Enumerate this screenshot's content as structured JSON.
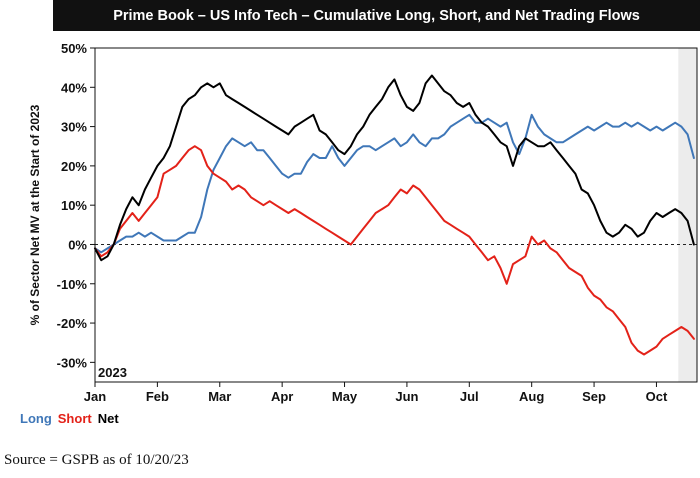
{
  "chart_data": {
    "type": "line",
    "title": "Prime Book – US Info Tech – Cumulative Long, Short, and Net Trading Flows",
    "ylabel": "% of Sector Net MV at the Start of 2023",
    "xlabel": "",
    "year_label": "2023",
    "ylim": [
      -35,
      50
    ],
    "yticks": [
      50,
      40,
      30,
      20,
      10,
      0,
      -10,
      -20,
      -30
    ],
    "ytick_labels": [
      "50%",
      "40%",
      "30%",
      "20%",
      "10%",
      "0%",
      "-10%",
      "-20%",
      "-30%"
    ],
    "xlim": [
      0,
      9.65
    ],
    "xticks": [
      0,
      1,
      2,
      3,
      4,
      5,
      6,
      7,
      8,
      9
    ],
    "xtick_labels": [
      "Jan",
      "Feb",
      "Mar",
      "Apr",
      "May",
      "Jun",
      "Jul",
      "Aug",
      "Sep",
      "Oct"
    ],
    "zero_line": "dashed",
    "shaded_region": [
      9.35,
      9.65
    ],
    "legend_position": "bottom-left",
    "series": [
      {
        "name": "Long",
        "color": "#3f77b8",
        "x": [
          0,
          0.1,
          0.2,
          0.3,
          0.4,
          0.5,
          0.6,
          0.7,
          0.8,
          0.9,
          1.0,
          1.1,
          1.2,
          1.3,
          1.4,
          1.5,
          1.6,
          1.7,
          1.8,
          1.9,
          2.0,
          2.1,
          2.2,
          2.3,
          2.4,
          2.5,
          2.6,
          2.7,
          2.8,
          2.9,
          3.0,
          3.1,
          3.2,
          3.3,
          3.4,
          3.5,
          3.6,
          3.7,
          3.8,
          3.9,
          4.0,
          4.1,
          4.2,
          4.3,
          4.4,
          4.5,
          4.6,
          4.7,
          4.8,
          4.9,
          5.0,
          5.1,
          5.2,
          5.3,
          5.4,
          5.5,
          5.6,
          5.7,
          5.8,
          5.9,
          6.0,
          6.1,
          6.2,
          6.3,
          6.4,
          6.5,
          6.6,
          6.7,
          6.8,
          6.9,
          7.0,
          7.1,
          7.2,
          7.3,
          7.4,
          7.5,
          7.6,
          7.7,
          7.8,
          7.9,
          8.0,
          8.1,
          8.2,
          8.3,
          8.4,
          8.5,
          8.6,
          8.7,
          8.8,
          8.9,
          9.0,
          9.1,
          9.2,
          9.3,
          9.4,
          9.5,
          9.6
        ],
        "values": [
          -1,
          -2,
          -1,
          0,
          1,
          2,
          2,
          3,
          2,
          3,
          2,
          1,
          1,
          1,
          2,
          3,
          3,
          7,
          14,
          19,
          22,
          25,
          27,
          26,
          25,
          26,
          24,
          24,
          22,
          20,
          18,
          17,
          18,
          18,
          21,
          23,
          22,
          22,
          25,
          22,
          20,
          22,
          24,
          25,
          25,
          24,
          25,
          26,
          27,
          25,
          26,
          28,
          26,
          25,
          27,
          27,
          28,
          30,
          31,
          32,
          33,
          31,
          31,
          32,
          31,
          30,
          31,
          26,
          23,
          27,
          33,
          30,
          28,
          27,
          26,
          26,
          27,
          28,
          29,
          30,
          29,
          30,
          31,
          30,
          30,
          31,
          30,
          31,
          30,
          29,
          30,
          29,
          30,
          31,
          30,
          28,
          22
        ]
      },
      {
        "name": "Short",
        "color": "#e32219",
        "x": [
          0,
          0.1,
          0.2,
          0.3,
          0.4,
          0.5,
          0.6,
          0.7,
          0.8,
          0.9,
          1.0,
          1.1,
          1.2,
          1.3,
          1.4,
          1.5,
          1.6,
          1.7,
          1.8,
          1.9,
          2.0,
          2.1,
          2.2,
          2.3,
          2.4,
          2.5,
          2.6,
          2.7,
          2.8,
          2.9,
          3.0,
          3.1,
          3.2,
          3.3,
          3.4,
          3.5,
          3.6,
          3.7,
          3.8,
          3.9,
          4.0,
          4.1,
          4.2,
          4.3,
          4.4,
          4.5,
          4.6,
          4.7,
          4.8,
          4.9,
          5.0,
          5.1,
          5.2,
          5.3,
          5.4,
          5.5,
          5.6,
          5.7,
          5.8,
          5.9,
          6.0,
          6.1,
          6.2,
          6.3,
          6.4,
          6.5,
          6.6,
          6.7,
          6.8,
          6.9,
          7.0,
          7.1,
          7.2,
          7.3,
          7.4,
          7.5,
          7.6,
          7.7,
          7.8,
          7.9,
          8.0,
          8.1,
          8.2,
          8.3,
          8.4,
          8.5,
          8.6,
          8.7,
          8.8,
          8.9,
          9.0,
          9.1,
          9.2,
          9.3,
          9.4,
          9.5,
          9.6
        ],
        "values": [
          -1,
          -3,
          -2,
          0,
          4,
          6,
          8,
          6,
          8,
          10,
          12,
          18,
          19,
          20,
          22,
          24,
          25,
          24,
          20,
          18,
          17,
          16,
          14,
          15,
          14,
          12,
          11,
          10,
          11,
          10,
          9,
          8,
          9,
          8,
          7,
          6,
          5,
          4,
          3,
          2,
          1,
          0,
          2,
          4,
          6,
          8,
          9,
          10,
          12,
          14,
          13,
          15,
          14,
          12,
          10,
          8,
          6,
          5,
          4,
          3,
          2,
          0,
          -2,
          -4,
          -3,
          -6,
          -10,
          -5,
          -4,
          -3,
          2,
          0,
          1,
          -1,
          -2,
          -4,
          -6,
          -7,
          -8,
          -11,
          -13,
          -14,
          -16,
          -17,
          -19,
          -21,
          -25,
          -27,
          -28,
          -27,
          -26,
          -24,
          -23,
          -22,
          -21,
          -22,
          -24
        ]
      },
      {
        "name": "Net",
        "color": "#000000",
        "x": [
          0,
          0.1,
          0.2,
          0.3,
          0.4,
          0.5,
          0.6,
          0.7,
          0.8,
          0.9,
          1.0,
          1.1,
          1.2,
          1.3,
          1.4,
          1.5,
          1.6,
          1.7,
          1.8,
          1.9,
          2.0,
          2.1,
          2.2,
          2.3,
          2.4,
          2.5,
          2.6,
          2.7,
          2.8,
          2.9,
          3.0,
          3.1,
          3.2,
          3.3,
          3.4,
          3.5,
          3.6,
          3.7,
          3.8,
          3.9,
          4.0,
          4.1,
          4.2,
          4.3,
          4.4,
          4.5,
          4.6,
          4.7,
          4.8,
          4.9,
          5.0,
          5.1,
          5.2,
          5.3,
          5.4,
          5.5,
          5.6,
          5.7,
          5.8,
          5.9,
          6.0,
          6.1,
          6.2,
          6.3,
          6.4,
          6.5,
          6.6,
          6.7,
          6.8,
          6.9,
          7.0,
          7.1,
          7.2,
          7.3,
          7.4,
          7.5,
          7.6,
          7.7,
          7.8,
          7.9,
          8.0,
          8.1,
          8.2,
          8.3,
          8.4,
          8.5,
          8.6,
          8.7,
          8.8,
          8.9,
          9.0,
          9.1,
          9.2,
          9.3,
          9.4,
          9.5,
          9.6
        ],
        "values": [
          -1,
          -4,
          -3,
          0,
          5,
          9,
          12,
          10,
          14,
          17,
          20,
          22,
          25,
          30,
          35,
          37,
          38,
          40,
          41,
          40,
          41,
          38,
          37,
          36,
          35,
          34,
          33,
          32,
          31,
          30,
          29,
          28,
          30,
          31,
          32,
          33,
          29,
          28,
          26,
          24,
          23,
          25,
          28,
          30,
          33,
          35,
          37,
          40,
          42,
          38,
          35,
          34,
          36,
          41,
          43,
          41,
          39,
          38,
          36,
          35,
          36,
          33,
          31,
          30,
          28,
          26,
          25,
          20,
          25,
          27,
          26,
          25,
          25,
          26,
          24,
          22,
          20,
          18,
          14,
          13,
          10,
          6,
          3,
          2,
          3,
          5,
          4,
          2,
          3,
          6,
          8,
          7,
          8,
          9,
          8,
          6,
          0
        ]
      }
    ]
  },
  "legend": {
    "long_label": "Long",
    "short_label": "Short",
    "net_label": "Net"
  },
  "footer": {
    "source": "Source = GSPB as of 10/20/23"
  }
}
